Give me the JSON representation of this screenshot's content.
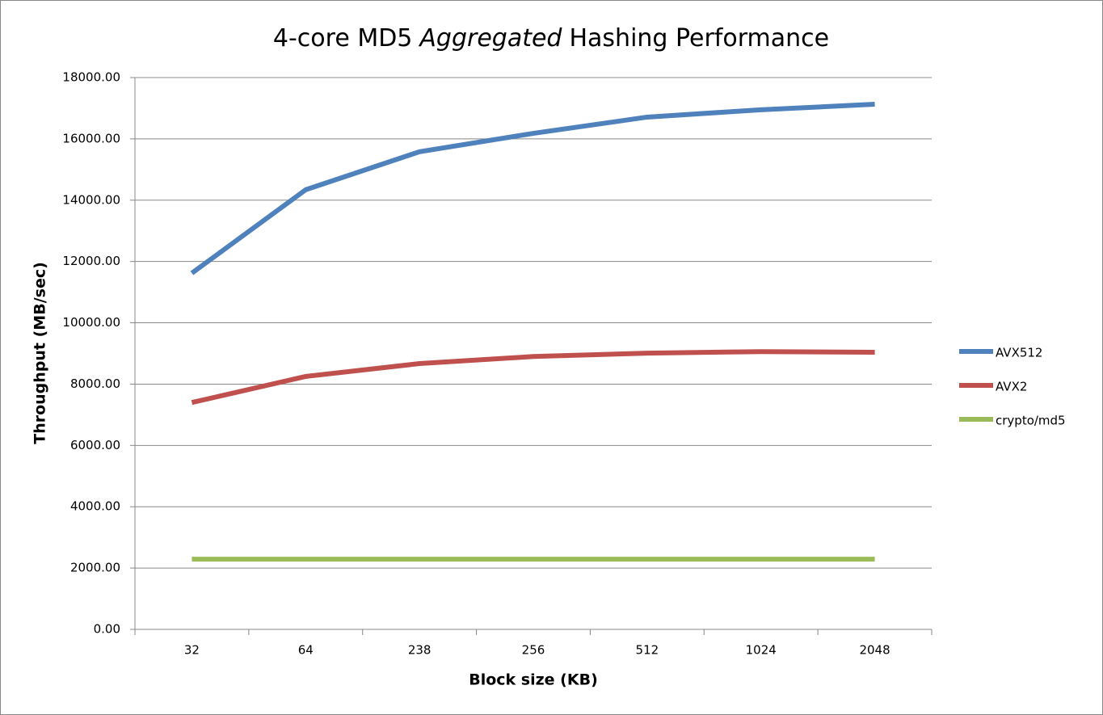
{
  "chart_data": {
    "type": "line",
    "title": [
      "4-core MD5",
      "Aggregated",
      "Hashing Performance"
    ],
    "x_label": "Block size (KB)",
    "y_label": "Throughput (MB/sec)",
    "categories": [
      "32",
      "64",
      "238",
      "256",
      "512",
      "1024",
      "2048"
    ],
    "series": [
      {
        "name": "AVX512",
        "color": "#4f81bd",
        "values": [
          11620,
          14340,
          15580,
          16180,
          16710,
          16950,
          17130
        ]
      },
      {
        "name": "AVX2",
        "color": "#c0504d",
        "values": [
          7400,
          8250,
          8670,
          8900,
          9010,
          9060,
          9040
        ]
      },
      {
        "name": "crypto/md5",
        "color": "#9bbb59",
        "values": [
          2290,
          2290,
          2290,
          2290,
          2290,
          2290,
          2290
        ]
      }
    ],
    "ylim": [
      0,
      18000
    ],
    "yticks": [
      {
        "value": 0,
        "label": "0.00"
      },
      {
        "value": 2000,
        "label": "2000.00"
      },
      {
        "value": 4000,
        "label": "4000.00"
      },
      {
        "value": 6000,
        "label": "6000.00"
      },
      {
        "value": 8000,
        "label": "8000.00"
      },
      {
        "value": 10000,
        "label": "10000.00"
      },
      {
        "value": 12000,
        "label": "12000.00"
      },
      {
        "value": 14000,
        "label": "14000.00"
      },
      {
        "value": 16000,
        "label": "16000.00"
      },
      {
        "value": 18000,
        "label": "18000.00"
      }
    ],
    "grid": true,
    "legend": "right"
  }
}
